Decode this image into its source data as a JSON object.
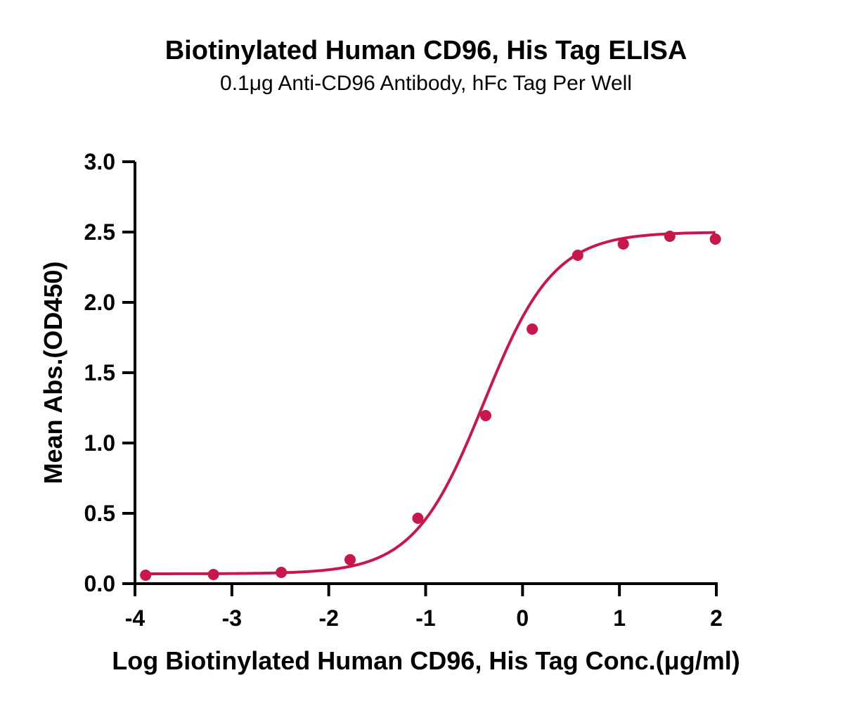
{
  "chart_data": {
    "type": "line",
    "title": "Biotinylated Human CD96, His Tag ELISA",
    "subtitle": "0.1μg Anti-CD96 Antibody, hFc Tag Per Well",
    "xlabel": "Log Biotinylated Human CD96, His Tag Conc.(μg/ml)",
    "ylabel": "Mean Abs.(OD450)",
    "xlim": [
      -4,
      2
    ],
    "ylim": [
      0,
      3.0
    ],
    "x_ticks": [
      "-4",
      "-3",
      "-2",
      "-1",
      "0",
      "1",
      "2"
    ],
    "y_ticks": [
      "0.0",
      "0.5",
      "1.0",
      "1.5",
      "2.0",
      "2.5",
      "3.0"
    ],
    "grid": false,
    "legend": "none",
    "color": "#c8174a",
    "series": [
      {
        "points": [
          {
            "x": -3.89,
            "y": 0.06
          },
          {
            "x": -3.19,
            "y": 0.065
          },
          {
            "x": -2.49,
            "y": 0.08
          },
          {
            "x": -1.78,
            "y": 0.17
          },
          {
            "x": -1.08,
            "y": 0.465
          },
          {
            "x": -0.38,
            "y": 1.195
          },
          {
            "x": 0.1,
            "y": 1.81
          },
          {
            "x": 0.57,
            "y": 2.335
          },
          {
            "x": 1.04,
            "y": 2.415
          },
          {
            "x": 1.52,
            "y": 2.47
          },
          {
            "x": 1.99,
            "y": 2.45
          }
        ],
        "fit": {
          "model": "4PL",
          "bottom": 0.07,
          "top": 2.5,
          "log_ec50": -0.4,
          "hill_slope": 1.2
        }
      }
    ]
  }
}
